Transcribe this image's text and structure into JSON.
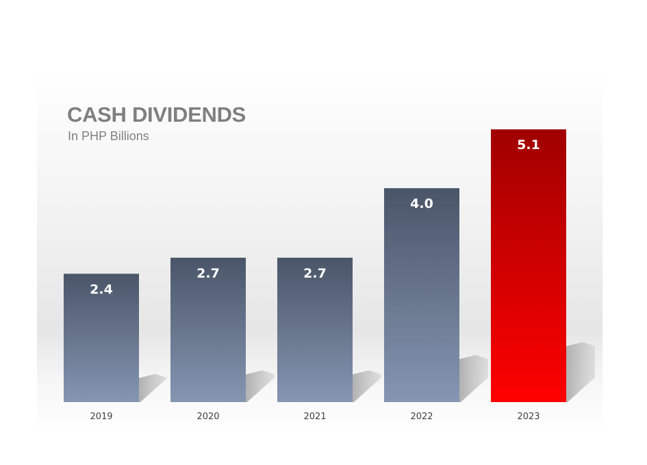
{
  "chart_data": {
    "type": "bar",
    "title": "CASH DIVIDENDS",
    "subtitle": "In PHP Billions",
    "categories": [
      "2019",
      "2020",
      "2021",
      "2022",
      "2023"
    ],
    "values": [
      2.4,
      2.7,
      2.7,
      4.0,
      5.1
    ],
    "value_labels": [
      "2.4",
      "2.7",
      "2.7",
      "4.0",
      "5.1"
    ],
    "highlight_index": 4,
    "colors": {
      "bar_top": "#4a5568",
      "bar_bottom": "#8696b2",
      "highlight_top": "#a00000",
      "highlight_bottom": "#ff0000",
      "label": "#ffffff",
      "tick": "#404040",
      "title": "#7f7f7f"
    },
    "xlabel": "",
    "ylabel": "",
    "grid": false,
    "legend": "none"
  }
}
